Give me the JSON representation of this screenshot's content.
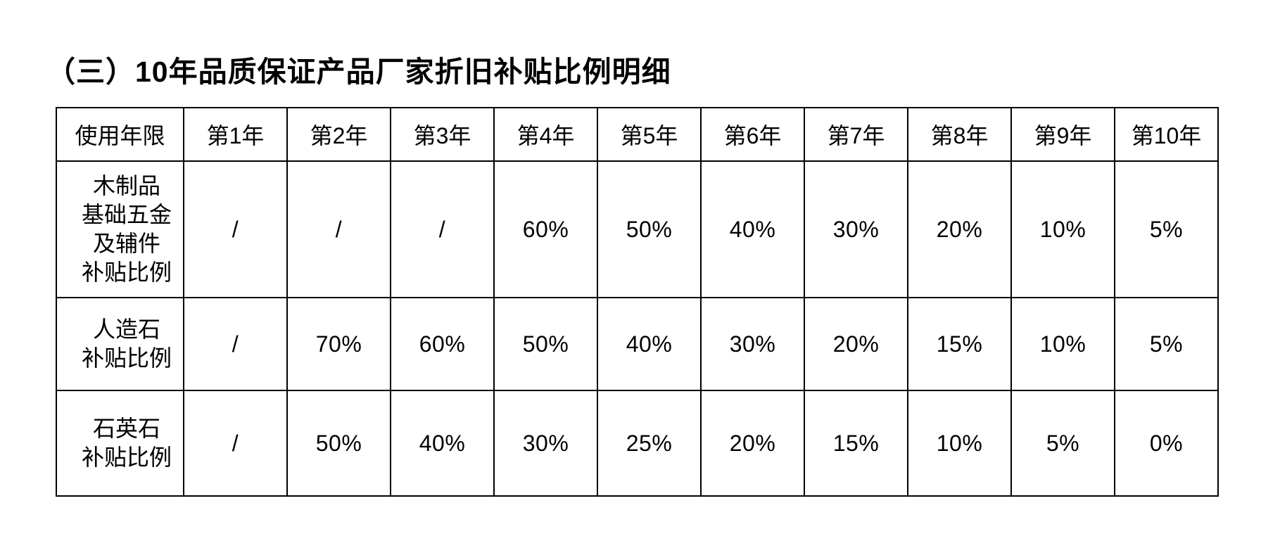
{
  "title": "（三）10年品质保证产品厂家折旧补贴比例明细",
  "table": {
    "header": [
      "使用年限",
      "第1年",
      "第2年",
      "第3年",
      "第4年",
      "第5年",
      "第6年",
      "第7年",
      "第8年",
      "第9年",
      "第10年"
    ],
    "rows": [
      {
        "label_lines": [
          "木制品",
          "基础五金",
          "及辅件",
          "补贴比例"
        ],
        "values": [
          "/",
          "/",
          "/",
          "60%",
          "50%",
          "40%",
          "30%",
          "20%",
          "10%",
          "5%"
        ]
      },
      {
        "label_lines": [
          "人造石",
          "补贴比例"
        ],
        "values": [
          "/",
          "70%",
          "60%",
          "50%",
          "40%",
          "30%",
          "20%",
          "15%",
          "10%",
          "5%"
        ]
      },
      {
        "label_lines": [
          "石英石",
          "补贴比例"
        ],
        "values": [
          "/",
          "50%",
          "40%",
          "30%",
          "25%",
          "20%",
          "15%",
          "10%",
          "5%",
          "0%"
        ]
      }
    ]
  },
  "colors": {
    "text": "#000000",
    "background": "#ffffff",
    "border": "#000000"
  }
}
